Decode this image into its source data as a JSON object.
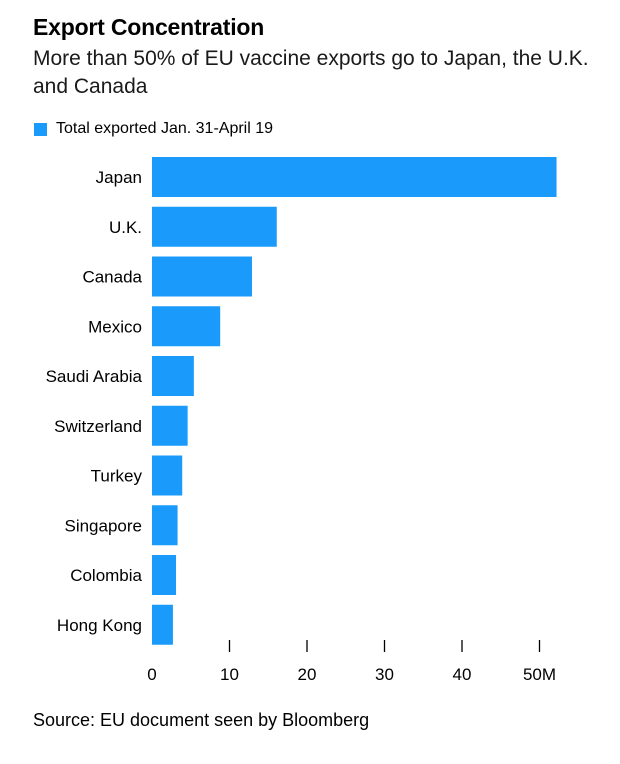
{
  "title": "Export Concentration",
  "subtitle": "More than 50% of EU vaccine exports go to Japan, the U.K. and Canada",
  "source": "Source: EU document seen by Bloomberg",
  "colors": {
    "bar": "#1a9bfc",
    "axis": "#000000"
  },
  "chart_data": {
    "type": "bar",
    "orientation": "horizontal",
    "categories": [
      "Japan",
      "U.K.",
      "Canada",
      "Mexico",
      "Saudi Arabia",
      "Switzerland",
      "Turkey",
      "Singapore",
      "Colombia",
      "Hong Kong"
    ],
    "series": [
      {
        "name": "Total exported Jan. 31-April 19",
        "values": [
          52.2,
          16.1,
          12.9,
          8.8,
          5.4,
          4.6,
          3.9,
          3.3,
          3.1,
          2.7
        ]
      }
    ],
    "xticks": [
      0,
      10,
      20,
      30,
      40,
      50
    ],
    "xtick_labels": [
      "0",
      "10",
      "20",
      "30",
      "40",
      "50M"
    ],
    "xlim": [
      0,
      55
    ],
    "grid": false,
    "legend_position": "top-left"
  }
}
